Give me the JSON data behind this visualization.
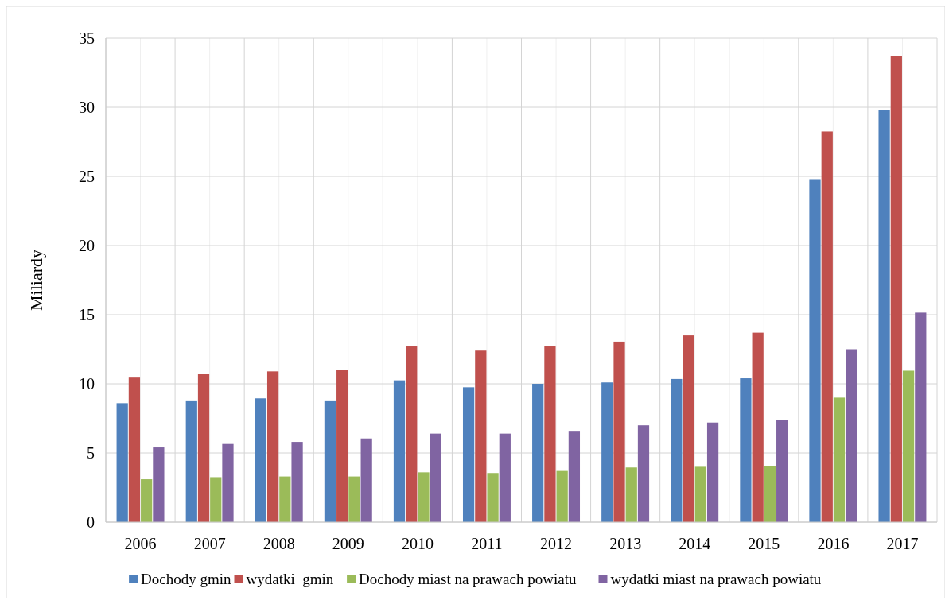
{
  "chart_data": {
    "type": "bar",
    "ylabel": "Miliardy",
    "categories": [
      "2006",
      "2007",
      "2008",
      "2009",
      "2010",
      "2011",
      "2012",
      "2013",
      "2014",
      "2015",
      "2016",
      "2017"
    ],
    "series": [
      {
        "name": "Dochody gmin",
        "color": "#4f81bd",
        "values": [
          8.6,
          8.8,
          8.95,
          8.8,
          10.25,
          9.75,
          10.0,
          10.1,
          10.35,
          10.4,
          24.8,
          29.8
        ]
      },
      {
        "name": "wydatki  gmin",
        "color": "#c0504d",
        "values": [
          10.45,
          10.7,
          10.9,
          11.0,
          12.7,
          12.4,
          12.7,
          13.05,
          13.5,
          13.7,
          28.25,
          33.7
        ]
      },
      {
        "name": "Dochody miast na prawach powiatu",
        "color": "#9bbb59",
        "values": [
          3.1,
          3.25,
          3.3,
          3.3,
          3.6,
          3.55,
          3.7,
          3.95,
          4.0,
          4.05,
          9.0,
          10.95
        ]
      },
      {
        "name": "wydatki miast na prawach powiatu",
        "color": "#8064a2",
        "values": [
          5.4,
          5.65,
          5.8,
          6.05,
          6.4,
          6.4,
          6.6,
          7.0,
          7.2,
          7.4,
          12.5,
          15.15
        ]
      }
    ],
    "ylim": [
      0,
      35
    ],
    "yticks": [
      0,
      5,
      10,
      15,
      20,
      25,
      30,
      35
    ],
    "grid": true,
    "legend": "bottom"
  }
}
